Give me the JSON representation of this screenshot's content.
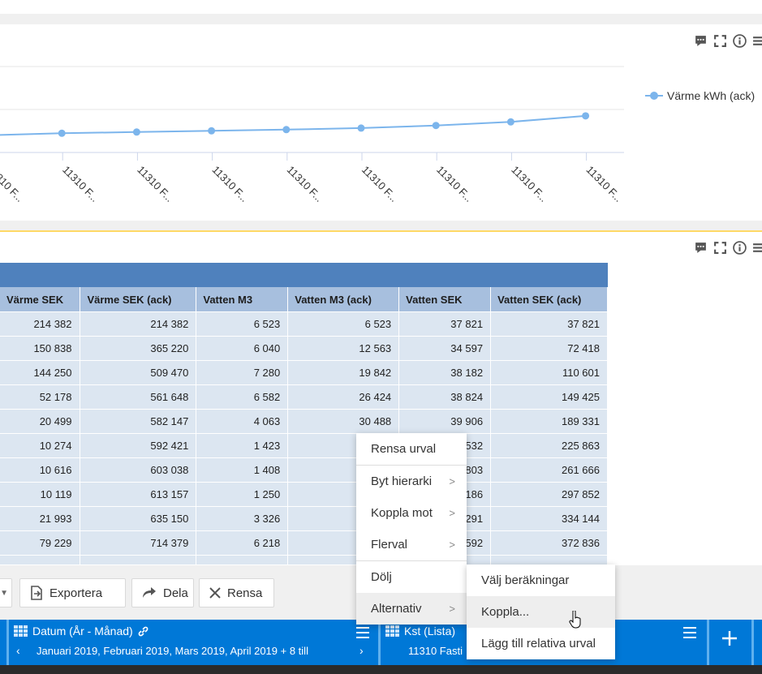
{
  "chart": {
    "legend_label": "Värme kWh (ack)",
    "x_tick_label": "11310 F...",
    "series_color": "#7cb5ec"
  },
  "chart_data": {
    "type": "line",
    "categories": [
      "11310 F...",
      "11310 F...",
      "11310 F...",
      "11310 F...",
      "11310 F...",
      "11310 F...",
      "11310 F...",
      "11310 F...",
      "11310 F..."
    ],
    "series": [
      {
        "name": "Värme kWh (ack)",
        "values": [
          1.0,
          1.12,
          1.19,
          1.26,
          1.33,
          1.42,
          1.57,
          1.78,
          2.13
        ]
      }
    ],
    "ylim": [
      0,
      5
    ],
    "grid": true,
    "legend_placement": "right"
  },
  "table": {
    "columns": [
      "Värme SEK",
      "Värme SEK (ack)",
      "Vatten M3",
      "Vatten M3 (ack)",
      "Vatten SEK",
      "Vatten SEK (ack)"
    ],
    "rows": [
      [
        "214 382",
        "214 382",
        "6 523",
        "6 523",
        "37 821",
        "37 821"
      ],
      [
        "150 838",
        "365 220",
        "6 040",
        "12 563",
        "34 597",
        "72 418"
      ],
      [
        "144 250",
        "509 470",
        "7 280",
        "19 842",
        "38 182",
        "110 601"
      ],
      [
        "52 178",
        "561 648",
        "6 582",
        "26 424",
        "38 824",
        "149 425"
      ],
      [
        "20 499",
        "582 147",
        "4 063",
        "30 488",
        "39 906",
        "189 331"
      ],
      [
        "10 274",
        "592 421",
        "1 423",
        "",
        "532",
        "225 863"
      ],
      [
        "10 616",
        "603 038",
        "1 408",
        "",
        "803",
        "261 666"
      ],
      [
        "10 119",
        "613 157",
        "1 250",
        "",
        "186",
        "297 852"
      ],
      [
        "21 993",
        "635 150",
        "3 326",
        "",
        "291",
        "334 144"
      ],
      [
        "79 229",
        "714 379",
        "6 218",
        "",
        "592",
        "372 836"
      ],
      [
        "",
        "",
        "",
        "",
        "",
        ""
      ]
    ]
  },
  "toolbar": {
    "export_label": "Exportera",
    "share_label": "Dela",
    "clear_label": "Rensa"
  },
  "selections": {
    "date": {
      "title": "Datum (År - Månad)",
      "value": "Januari 2019, Februari 2019, Mars 2019, April 2019 + 8 till"
    },
    "kst": {
      "title": "Kst (Lista)",
      "value": "11310 Fasti"
    }
  },
  "context_menu": {
    "items": [
      "Rensa urval",
      "Byt hierarki",
      "Koppla mot",
      "Flerval",
      "Dölj",
      "Alternativ"
    ]
  },
  "sub_menu": {
    "items": [
      "Välj beräkningar",
      "Koppla...",
      "Lägg till relativa urval"
    ]
  }
}
